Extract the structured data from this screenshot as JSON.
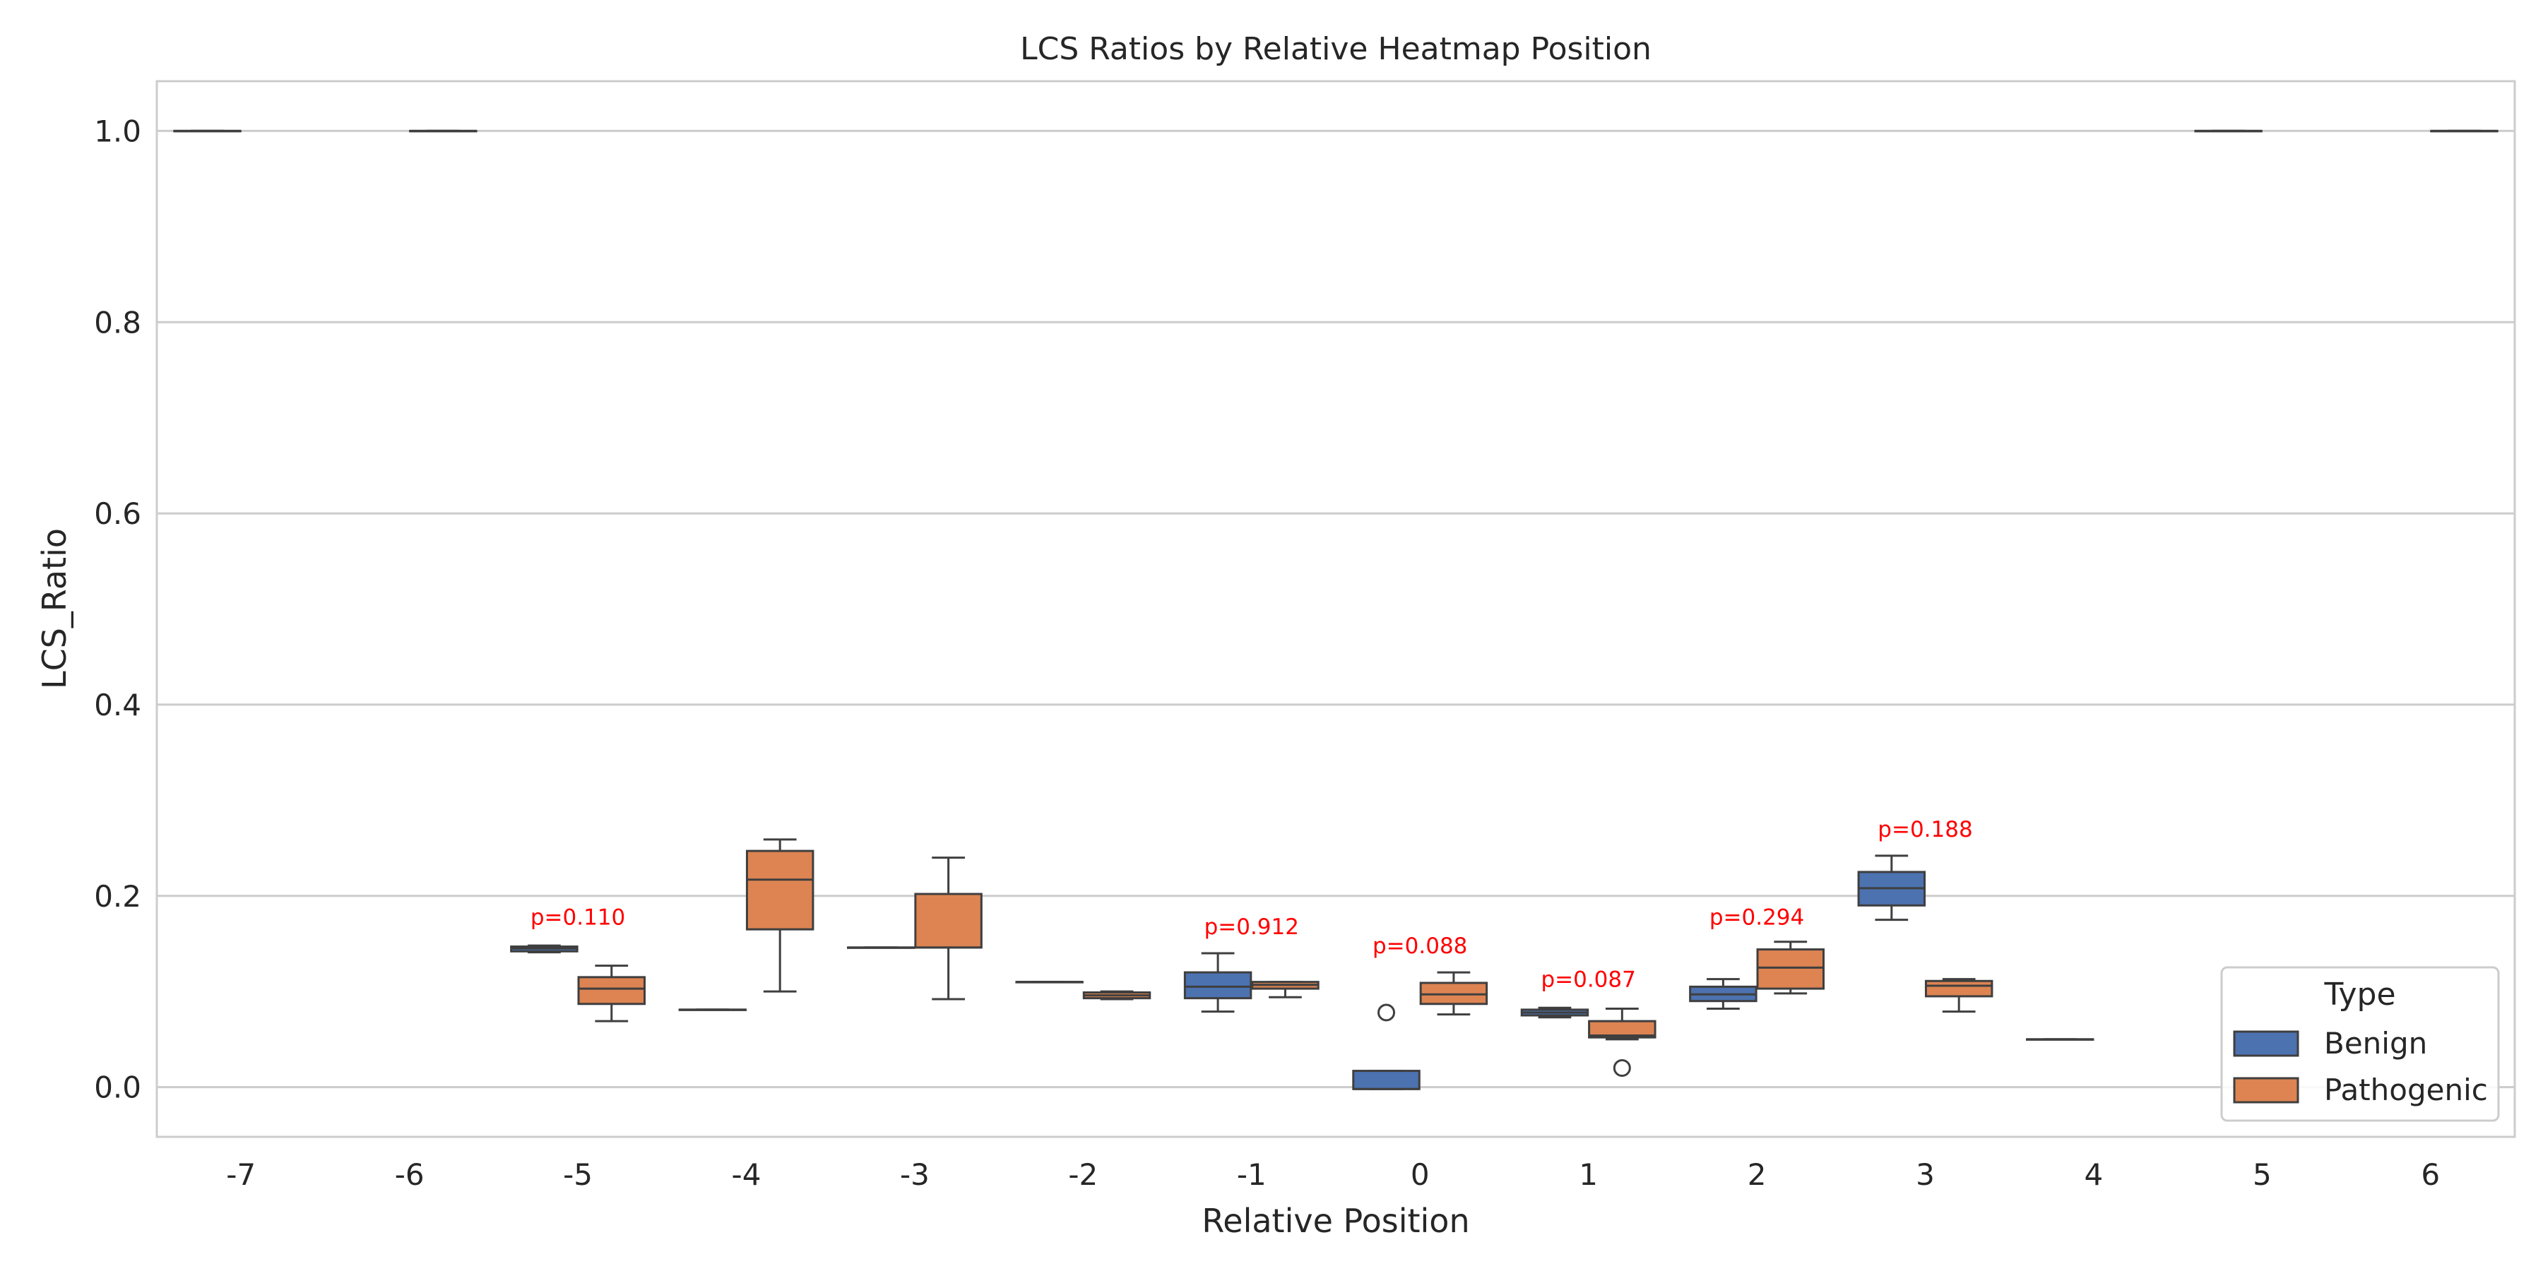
{
  "chart_data": {
    "type": "box",
    "title": "LCS Ratios by Relative Heatmap Position",
    "xlabel": "Relative Position",
    "ylabel": "LCS_Ratio",
    "categories": [
      "-7",
      "-6",
      "-5",
      "-4",
      "-3",
      "-2",
      "-1",
      "0",
      "1",
      "2",
      "3",
      "4",
      "5",
      "6"
    ],
    "ylim": [
      -0.052,
      1.052
    ],
    "yticks": [
      0.0,
      0.2,
      0.4,
      0.6,
      0.8,
      1.0
    ],
    "ytick_labels": [
      "0.0",
      "0.2",
      "0.4",
      "0.6",
      "0.8",
      "1.0"
    ],
    "grid": "horizontal",
    "legend": {
      "title": "Type",
      "position": "lower-right",
      "entries": [
        {
          "name": "Benign",
          "color": "#4c72b0"
        },
        {
          "name": "Pathogenic",
          "color": "#dd8452"
        }
      ]
    },
    "series": [
      {
        "name": "Benign",
        "color": "#4c72b0",
        "boxes": [
          {
            "category": "-7",
            "min": 1.0,
            "q1": 1.0,
            "median": 1.0,
            "q3": 1.0,
            "max": 1.0,
            "outliers": []
          },
          {
            "category": "-5",
            "min": 0.141,
            "q1": 0.142,
            "median": 0.145,
            "q3": 0.147,
            "max": 0.148,
            "outliers": []
          },
          {
            "category": "-4",
            "min": 0.081,
            "q1": 0.081,
            "median": 0.081,
            "q3": 0.081,
            "max": 0.081,
            "outliers": []
          },
          {
            "category": "-3",
            "min": 0.146,
            "q1": 0.146,
            "median": 0.146,
            "q3": 0.146,
            "max": 0.146,
            "outliers": []
          },
          {
            "category": "-2",
            "min": 0.11,
            "q1": 0.11,
            "median": 0.11,
            "q3": 0.11,
            "max": 0.11,
            "outliers": []
          },
          {
            "category": "-1",
            "min": 0.079,
            "q1": 0.093,
            "median": 0.105,
            "q3": 0.12,
            "max": 0.14,
            "outliers": []
          },
          {
            "category": "0",
            "min": -0.002,
            "q1": -0.002,
            "median": -0.002,
            "q3": 0.017,
            "max": 0.017,
            "outliers": [
              0.078
            ]
          },
          {
            "category": "1",
            "min": 0.073,
            "q1": 0.075,
            "median": 0.078,
            "q3": 0.081,
            "max": 0.083,
            "outliers": []
          },
          {
            "category": "2",
            "min": 0.082,
            "q1": 0.09,
            "median": 0.097,
            "q3": 0.105,
            "max": 0.113,
            "outliers": []
          },
          {
            "category": "3",
            "min": 0.175,
            "q1": 0.19,
            "median": 0.208,
            "q3": 0.225,
            "max": 0.242,
            "outliers": []
          },
          {
            "category": "4",
            "min": 0.05,
            "q1": 0.05,
            "median": 0.05,
            "q3": 0.05,
            "max": 0.05,
            "outliers": []
          },
          {
            "category": "5",
            "min": 1.0,
            "q1": 1.0,
            "median": 1.0,
            "q3": 1.0,
            "max": 1.0,
            "outliers": []
          }
        ]
      },
      {
        "name": "Pathogenic",
        "color": "#dd8452",
        "boxes": [
          {
            "category": "-6",
            "min": 1.0,
            "q1": 1.0,
            "median": 1.0,
            "q3": 1.0,
            "max": 1.0,
            "outliers": []
          },
          {
            "category": "-5",
            "min": 0.069,
            "q1": 0.087,
            "median": 0.103,
            "q3": 0.115,
            "max": 0.127,
            "outliers": []
          },
          {
            "category": "-4",
            "min": 0.1,
            "q1": 0.165,
            "median": 0.217,
            "q3": 0.247,
            "max": 0.259,
            "outliers": []
          },
          {
            "category": "-3",
            "min": 0.092,
            "q1": 0.146,
            "median": 0.146,
            "q3": 0.202,
            "max": 0.24,
            "outliers": []
          },
          {
            "category": "-2",
            "min": 0.092,
            "q1": 0.093,
            "median": 0.096,
            "q3": 0.099,
            "max": 0.1,
            "outliers": []
          },
          {
            "category": "-1",
            "min": 0.094,
            "q1": 0.103,
            "median": 0.107,
            "q3": 0.11,
            "max": 0.11,
            "outliers": []
          },
          {
            "category": "0",
            "min": 0.076,
            "q1": 0.087,
            "median": 0.097,
            "q3": 0.109,
            "max": 0.12,
            "outliers": []
          },
          {
            "category": "1",
            "min": 0.05,
            "q1": 0.052,
            "median": 0.054,
            "q3": 0.069,
            "max": 0.082,
            "outliers": [
              0.02
            ]
          },
          {
            "category": "2",
            "min": 0.098,
            "q1": 0.103,
            "median": 0.125,
            "q3": 0.144,
            "max": 0.152,
            "outliers": []
          },
          {
            "category": "3",
            "min": 0.079,
            "q1": 0.095,
            "median": 0.106,
            "q3": 0.111,
            "max": 0.113,
            "outliers": []
          },
          {
            "category": "6",
            "min": 1.0,
            "q1": 1.0,
            "median": 1.0,
            "q3": 1.0,
            "max": 1.0,
            "outliers": []
          }
        ]
      }
    ],
    "annotations": [
      {
        "category": "-5",
        "text": "p=0.110",
        "y": 0.17,
        "color": "#ff0000"
      },
      {
        "category": "-1",
        "text": "p=0.912",
        "y": 0.16,
        "color": "#ff0000"
      },
      {
        "category": "0",
        "text": "p=0.088",
        "y": 0.14,
        "color": "#ff0000"
      },
      {
        "category": "1",
        "text": "p=0.087",
        "y": 0.105,
        "color": "#ff0000"
      },
      {
        "category": "2",
        "text": "p=0.294",
        "y": 0.17,
        "color": "#ff0000"
      },
      {
        "category": "3",
        "text": "p=0.188",
        "y": 0.262,
        "color": "#ff0000"
      }
    ]
  }
}
